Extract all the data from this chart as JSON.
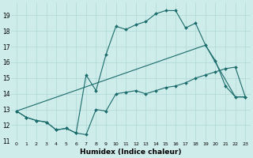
{
  "xlabel": "Humidex (Indice chaleur)",
  "bg_color": "#ceecea",
  "grid_color": "#add8d6",
  "line_color": "#1a6b6b",
  "xlim": [
    -0.5,
    23.5
  ],
  "ylim": [
    11,
    19.8
  ],
  "yticks": [
    11,
    12,
    13,
    14,
    15,
    16,
    17,
    18,
    19
  ],
  "xticks": [
    0,
    1,
    2,
    3,
    4,
    5,
    6,
    7,
    8,
    9,
    10,
    11,
    12,
    13,
    14,
    15,
    16,
    17,
    18,
    19,
    20,
    21,
    22,
    23
  ],
  "line1_x": [
    0,
    1,
    2,
    3,
    4,
    5,
    6,
    7,
    8,
    9,
    10,
    11,
    12,
    13,
    14,
    15,
    16,
    17,
    18,
    19,
    20,
    21,
    22,
    23
  ],
  "line1_y": [
    12.9,
    12.5,
    12.3,
    12.2,
    11.7,
    11.8,
    11.5,
    11.4,
    13.0,
    12.9,
    14.0,
    14.1,
    14.2,
    14.0,
    14.2,
    14.4,
    14.5,
    14.7,
    15.0,
    15.2,
    15.4,
    15.6,
    15.7,
    13.8
  ],
  "line2_x": [
    0,
    1,
    2,
    3,
    4,
    5,
    6,
    7,
    8,
    9,
    10,
    11,
    12,
    13,
    14,
    15,
    16,
    17,
    18,
    19,
    20,
    21,
    22,
    23
  ],
  "line2_y": [
    12.9,
    12.5,
    12.3,
    12.2,
    11.7,
    11.8,
    11.5,
    15.2,
    14.2,
    16.5,
    18.3,
    18.1,
    18.4,
    18.6,
    19.1,
    19.3,
    19.3,
    18.2,
    18.5,
    17.1,
    16.1,
    14.5,
    13.8,
    13.8
  ],
  "line3_x": [
    0,
    19,
    22,
    23
  ],
  "line3_y": [
    12.9,
    17.1,
    13.8,
    13.8
  ]
}
